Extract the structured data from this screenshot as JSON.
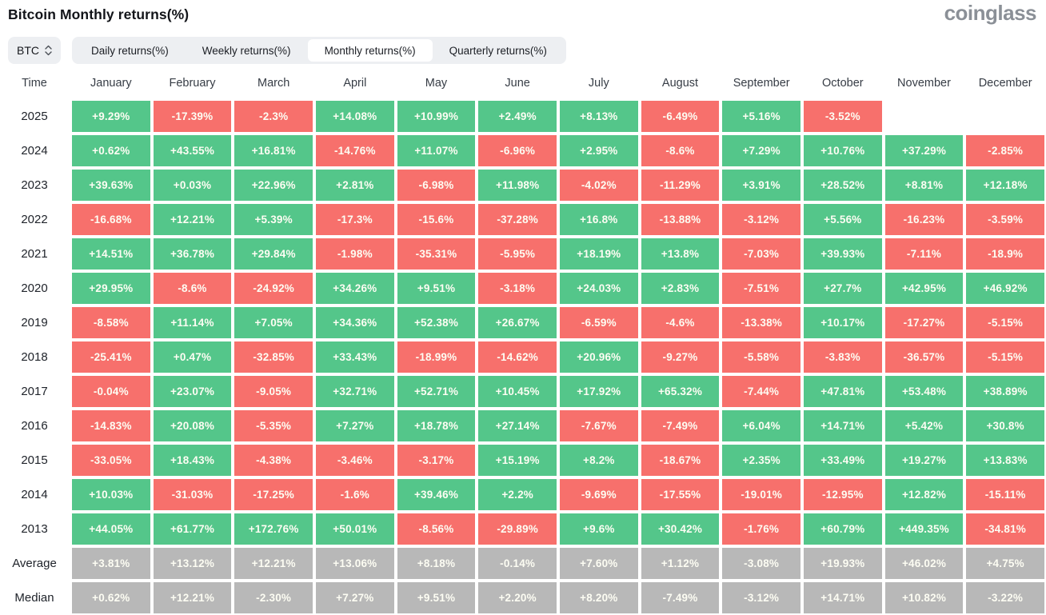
{
  "header": {
    "title": "Bitcoin Monthly returns(%)",
    "logo": "coinglass"
  },
  "controls": {
    "symbol_select": {
      "value": "BTC",
      "icon": "up-down-chevrons-icon"
    },
    "tabs": [
      {
        "label": "Daily returns(%)",
        "active": false
      },
      {
        "label": "Weekly returns(%)",
        "active": false
      },
      {
        "label": "Monthly returns(%)",
        "active": true
      },
      {
        "label": "Quarterly returns(%)",
        "active": false
      }
    ]
  },
  "chart_data": {
    "type": "heatmap",
    "title": "Bitcoin Monthly returns(%)",
    "columns": [
      "Time",
      "January",
      "February",
      "March",
      "April",
      "May",
      "June",
      "July",
      "August",
      "September",
      "October",
      "November",
      "December"
    ],
    "colors": {
      "positive": "#54c68a",
      "negative": "#f7706c",
      "summary": "#b8b8b8",
      "cell_text": "#fdfdf3"
    },
    "rows": [
      {
        "label": "2025",
        "kind": "year",
        "values": [
          "+9.29%",
          "-17.39%",
          "-2.3%",
          "+14.08%",
          "+10.99%",
          "+2.49%",
          "+8.13%",
          "-6.49%",
          "+5.16%",
          "-3.52%",
          null,
          null
        ]
      },
      {
        "label": "2024",
        "kind": "year",
        "values": [
          "+0.62%",
          "+43.55%",
          "+16.81%",
          "-14.76%",
          "+11.07%",
          "-6.96%",
          "+2.95%",
          "-8.6%",
          "+7.29%",
          "+10.76%",
          "+37.29%",
          "-2.85%"
        ]
      },
      {
        "label": "2023",
        "kind": "year",
        "values": [
          "+39.63%",
          "+0.03%",
          "+22.96%",
          "+2.81%",
          "-6.98%",
          "+11.98%",
          "-4.02%",
          "-11.29%",
          "+3.91%",
          "+28.52%",
          "+8.81%",
          "+12.18%"
        ]
      },
      {
        "label": "2022",
        "kind": "year",
        "values": [
          "-16.68%",
          "+12.21%",
          "+5.39%",
          "-17.3%",
          "-15.6%",
          "-37.28%",
          "+16.8%",
          "-13.88%",
          "-3.12%",
          "+5.56%",
          "-16.23%",
          "-3.59%"
        ]
      },
      {
        "label": "2021",
        "kind": "year",
        "values": [
          "+14.51%",
          "+36.78%",
          "+29.84%",
          "-1.98%",
          "-35.31%",
          "-5.95%",
          "+18.19%",
          "+13.8%",
          "-7.03%",
          "+39.93%",
          "-7.11%",
          "-18.9%"
        ]
      },
      {
        "label": "2020",
        "kind": "year",
        "values": [
          "+29.95%",
          "-8.6%",
          "-24.92%",
          "+34.26%",
          "+9.51%",
          "-3.18%",
          "+24.03%",
          "+2.83%",
          "-7.51%",
          "+27.7%",
          "+42.95%",
          "+46.92%"
        ]
      },
      {
        "label": "2019",
        "kind": "year",
        "values": [
          "-8.58%",
          "+11.14%",
          "+7.05%",
          "+34.36%",
          "+52.38%",
          "+26.67%",
          "-6.59%",
          "-4.6%",
          "-13.38%",
          "+10.17%",
          "-17.27%",
          "-5.15%"
        ]
      },
      {
        "label": "2018",
        "kind": "year",
        "values": [
          "-25.41%",
          "+0.47%",
          "-32.85%",
          "+33.43%",
          "-18.99%",
          "-14.62%",
          "+20.96%",
          "-9.27%",
          "-5.58%",
          "-3.83%",
          "-36.57%",
          "-5.15%"
        ]
      },
      {
        "label": "2017",
        "kind": "year",
        "values": [
          "-0.04%",
          "+23.07%",
          "-9.05%",
          "+32.71%",
          "+52.71%",
          "+10.45%",
          "+17.92%",
          "+65.32%",
          "-7.44%",
          "+47.81%",
          "+53.48%",
          "+38.89%"
        ]
      },
      {
        "label": "2016",
        "kind": "year",
        "values": [
          "-14.83%",
          "+20.08%",
          "-5.35%",
          "+7.27%",
          "+18.78%",
          "+27.14%",
          "-7.67%",
          "-7.49%",
          "+6.04%",
          "+14.71%",
          "+5.42%",
          "+30.8%"
        ]
      },
      {
        "label": "2015",
        "kind": "year",
        "values": [
          "-33.05%",
          "+18.43%",
          "-4.38%",
          "-3.46%",
          "-3.17%",
          "+15.19%",
          "+8.2%",
          "-18.67%",
          "+2.35%",
          "+33.49%",
          "+19.27%",
          "+13.83%"
        ]
      },
      {
        "label": "2014",
        "kind": "year",
        "values": [
          "+10.03%",
          "-31.03%",
          "-17.25%",
          "-1.6%",
          "+39.46%",
          "+2.2%",
          "-9.69%",
          "-17.55%",
          "-19.01%",
          "-12.95%",
          "+12.82%",
          "-15.11%"
        ]
      },
      {
        "label": "2013",
        "kind": "year",
        "values": [
          "+44.05%",
          "+61.77%",
          "+172.76%",
          "+50.01%",
          "-8.56%",
          "-29.89%",
          "+9.6%",
          "+30.42%",
          "-1.76%",
          "+60.79%",
          "+449.35%",
          "-34.81%"
        ]
      },
      {
        "label": "Average",
        "kind": "summary",
        "values": [
          "+3.81%",
          "+13.12%",
          "+12.21%",
          "+13.06%",
          "+8.18%",
          "-0.14%",
          "+7.60%",
          "+1.12%",
          "-3.08%",
          "+19.93%",
          "+46.02%",
          "+4.75%"
        ]
      },
      {
        "label": "Median",
        "kind": "summary",
        "values": [
          "+0.62%",
          "+12.21%",
          "-2.30%",
          "+7.27%",
          "+9.51%",
          "+2.20%",
          "+8.20%",
          "-7.49%",
          "-3.12%",
          "+14.71%",
          "+10.82%",
          "-3.22%"
        ]
      }
    ]
  }
}
